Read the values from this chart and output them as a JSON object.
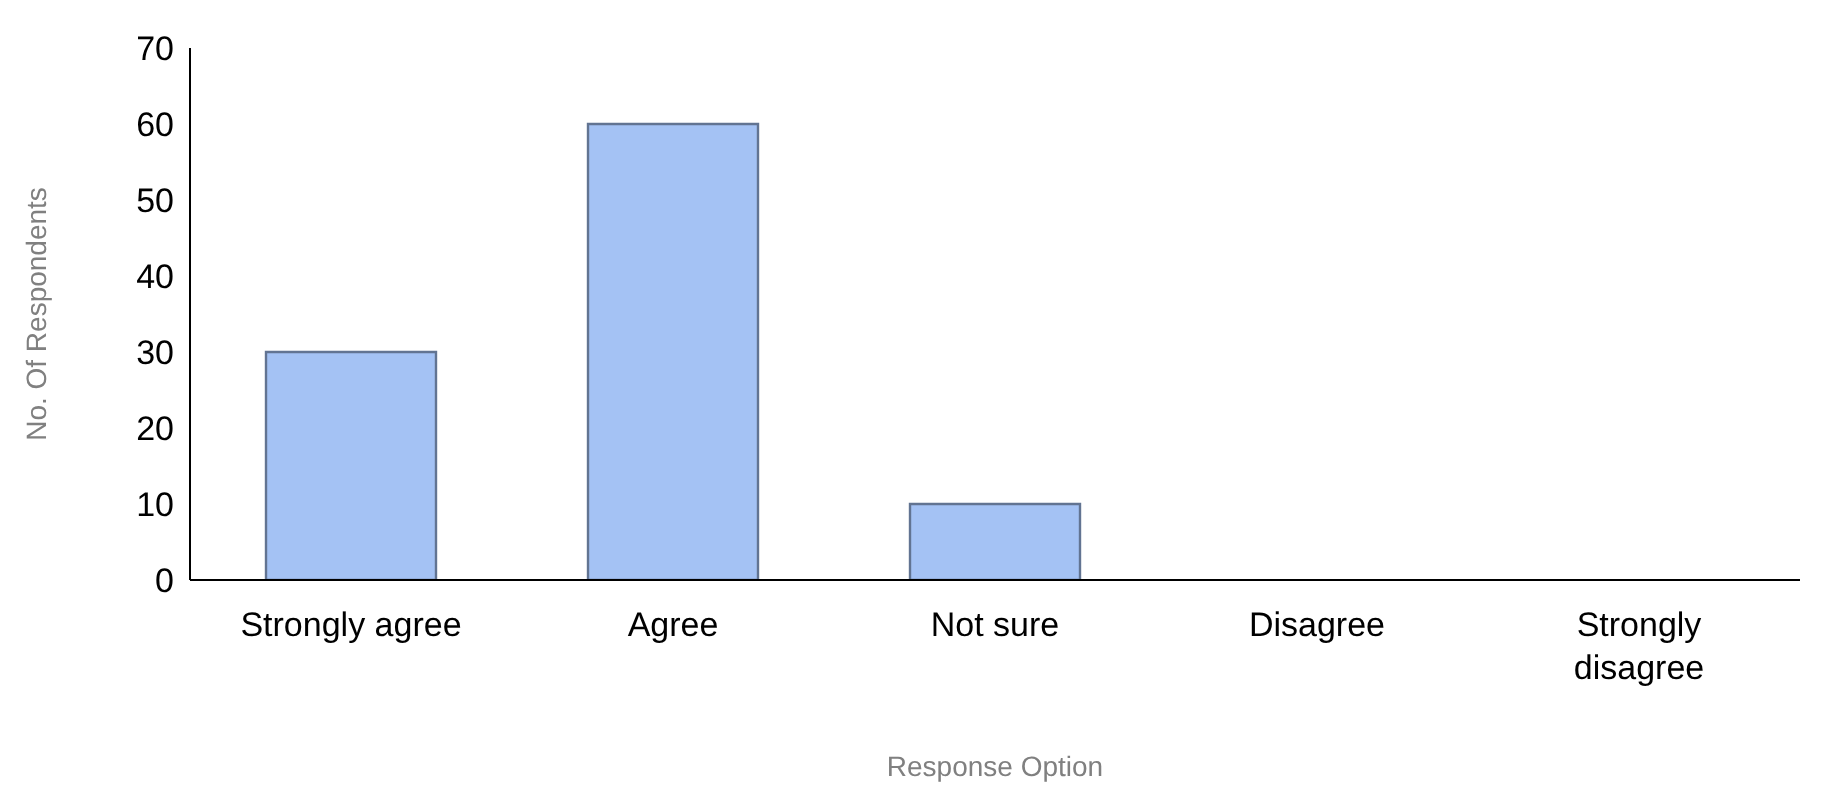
{
  "chart_data": {
    "type": "bar",
    "xlabel": "Response Option",
    "ylabel": "No. Of Respondents",
    "categories": [
      "Strongly agree",
      "Agree",
      "Not sure",
      "Disagree",
      "Strongly disagree"
    ],
    "values": [
      30,
      60,
      10,
      0,
      0
    ],
    "color": "#a4c2f4",
    "ylim": [
      0,
      70
    ],
    "yticks": [
      0,
      10,
      20,
      30,
      40,
      50,
      60,
      70
    ],
    "grid": false,
    "legend": false
  }
}
